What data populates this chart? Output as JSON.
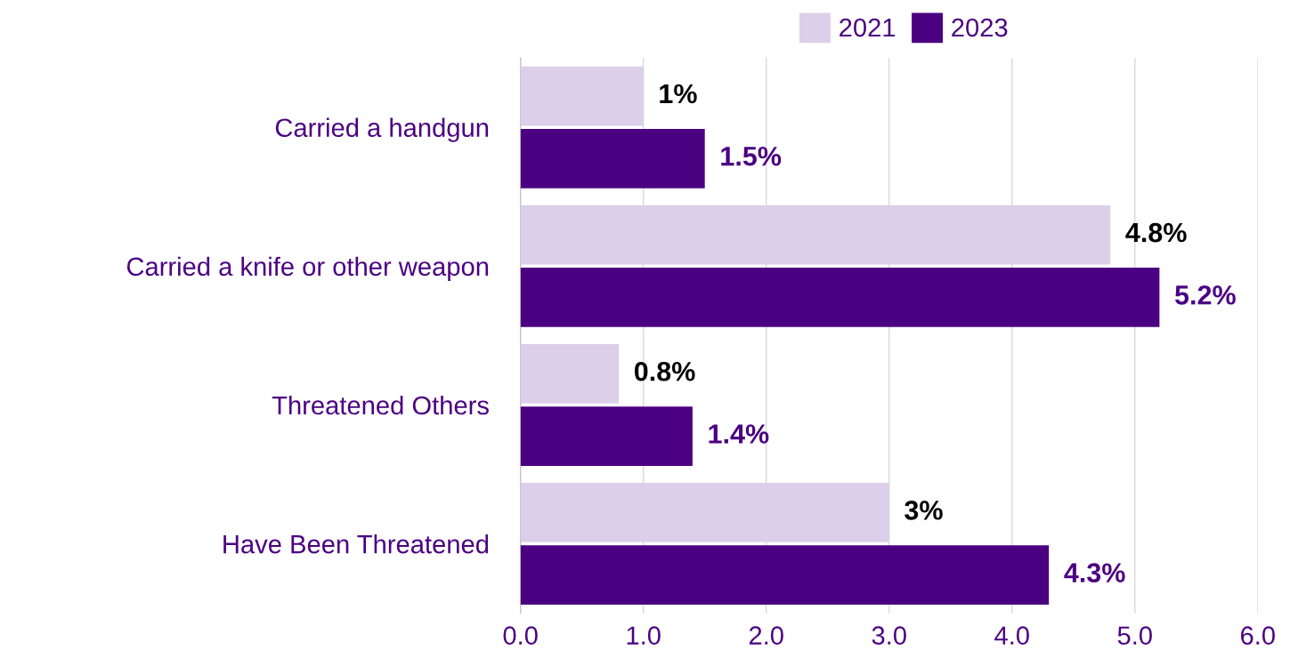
{
  "chart_data": {
    "type": "bar",
    "orientation": "horizontal",
    "categories": [
      "Carried a handgun",
      "Carried a knife or other weapon",
      "Threatened Others",
      "Have Been Threatened"
    ],
    "series": [
      {
        "name": "2021",
        "color": "#dccfea",
        "values": [
          1,
          4.8,
          0.8,
          3
        ],
        "value_labels": [
          "1%",
          "4.8%",
          "0.8%",
          "3%"
        ]
      },
      {
        "name": "2023",
        "color": "#4b0082",
        "values": [
          1.5,
          5.2,
          1.4,
          4.3
        ],
        "value_labels": [
          "1.5%",
          "5.2%",
          "1.4%",
          "4.3%"
        ]
      }
    ],
    "xlim": [
      0,
      6
    ],
    "xticks": [
      {
        "value": 0,
        "label": "0.0"
      },
      {
        "value": 1,
        "label": "1.0"
      },
      {
        "value": 2,
        "label": "2.0"
      },
      {
        "value": 3,
        "label": "3.0"
      },
      {
        "value": 4,
        "label": "4.0"
      },
      {
        "value": 5,
        "label": "5.0"
      },
      {
        "value": 6,
        "label": "6.0"
      }
    ],
    "grid": "x",
    "legend": "top"
  }
}
